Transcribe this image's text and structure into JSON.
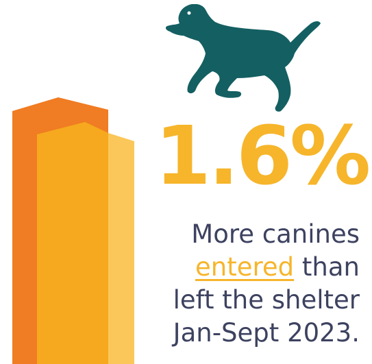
{
  "stat": {
    "value": "1.6%"
  },
  "caption": {
    "line1": "More canines",
    "highlight": "entered",
    "line2_rest": " than",
    "line3": "left the shelter",
    "line4": "Jan-Sept 2023."
  },
  "icons": {
    "dog": "running-dog-icon"
  },
  "colors": {
    "orange": "#F07C23",
    "amber": "#F6A91E",
    "light_amber": "#FBC75A",
    "teal": "#145F62",
    "text": "#3D4260",
    "stat": "#F6B52B"
  }
}
